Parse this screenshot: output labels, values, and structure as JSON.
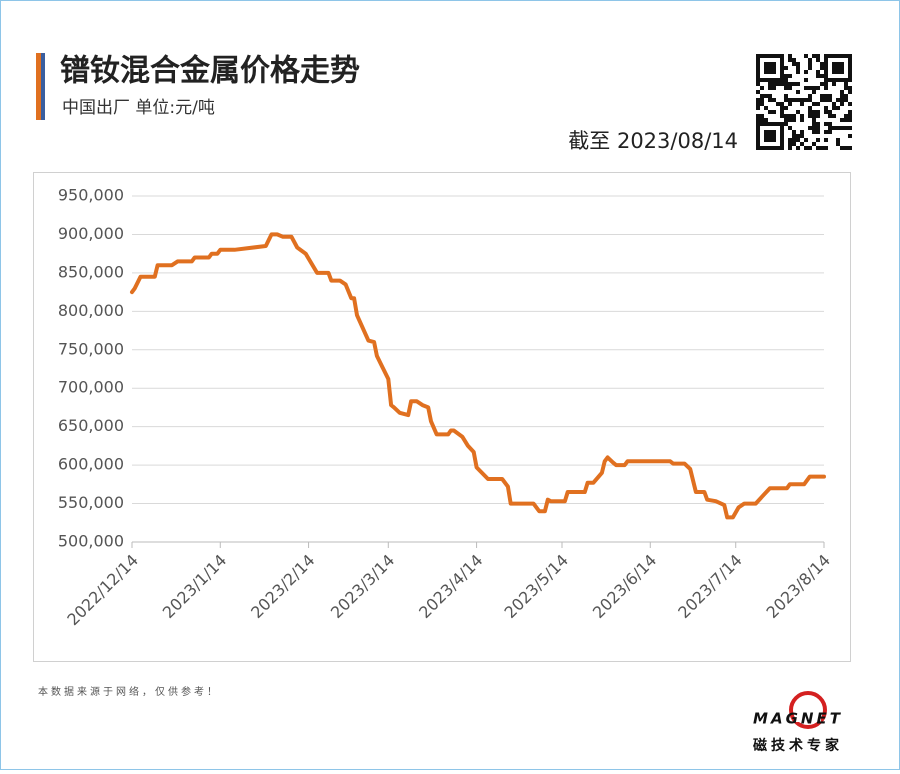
{
  "chart_data": {
    "type": "line",
    "title": "镨钕混合金属价格走势",
    "subtitle": "中国出厂 单位:元/吨",
    "date_note": "截至 2023/08/14",
    "footnote": "本数据来源于网络，仅供参考！",
    "brand": "MAGNET",
    "brand_tagline": "磁技术专家",
    "color": "#e07020",
    "grid": true,
    "x": [
      "2022/12/14",
      "2022/12/15",
      "2022/12/17",
      "2022/12/22",
      "2022/12/23",
      "2022/12/28",
      "2022/12/30",
      "2023/1/4",
      "2023/1/5",
      "2023/1/10",
      "2023/1/11",
      "2023/1/13",
      "2023/1/14",
      "2023/1/19",
      "2023/1/30",
      "2023/2/1",
      "2023/2/3",
      "2023/2/5",
      "2023/2/8",
      "2023/2/10",
      "2023/2/13",
      "2023/2/17",
      "2023/2/21",
      "2023/2/22",
      "2023/2/25",
      "2023/2/27",
      "2023/3/1",
      "2023/3/2",
      "2023/3/3",
      "2023/3/7",
      "2023/3/9",
      "2023/3/10",
      "2023/3/12",
      "2023/3/14",
      "2023/3/15",
      "2023/3/16",
      "2023/3/18",
      "2023/3/21",
      "2023/3/22",
      "2023/3/24",
      "2023/3/26",
      "2023/3/28",
      "2023/3/29",
      "2023/3/31",
      "2023/4/4",
      "2023/4/5",
      "2023/4/6",
      "2023/4/9",
      "2023/4/11",
      "2023/4/13",
      "2023/4/14",
      "2023/4/18",
      "2023/4/23",
      "2023/4/25",
      "2023/4/26",
      "2023/5/4",
      "2023/5/6",
      "2023/5/8",
      "2023/5/9",
      "2023/5/10",
      "2023/5/15",
      "2023/5/16",
      "2023/5/22",
      "2023/5/23",
      "2023/5/25",
      "2023/5/28",
      "2023/5/29",
      "2023/5/30",
      "2023/6/1",
      "2023/6/2",
      "2023/6/5",
      "2023/6/6",
      "2023/6/21",
      "2023/6/22",
      "2023/6/26",
      "2023/6/28",
      "2023/6/30",
      "2023/7/3",
      "2023/7/4",
      "2023/7/7",
      "2023/7/10",
      "2023/7/11",
      "2023/7/13",
      "2023/7/15",
      "2023/7/17",
      "2023/7/21",
      "2023/7/24",
      "2023/7/26",
      "2023/8/1",
      "2023/8/2",
      "2023/8/7",
      "2023/8/9",
      "2023/8/14"
    ],
    "values": [
      825000,
      830000,
      845000,
      845000,
      860000,
      860000,
      865000,
      865000,
      870000,
      870000,
      875000,
      875000,
      880000,
      880000,
      885000,
      900000,
      900000,
      897000,
      897000,
      883000,
      875000,
      850000,
      850000,
      840000,
      840000,
      835000,
      817000,
      817000,
      795000,
      762000,
      760000,
      742000,
      727000,
      712000,
      678000,
      675000,
      668000,
      665000,
      683000,
      683000,
      678000,
      675000,
      657000,
      640000,
      640000,
      645000,
      645000,
      637000,
      625000,
      617000,
      597000,
      582000,
      582000,
      572000,
      550000,
      550000,
      540000,
      540000,
      555000,
      553000,
      553000,
      565000,
      565000,
      577000,
      577000,
      590000,
      605000,
      610000,
      603000,
      600000,
      600000,
      605000,
      605000,
      602000,
      602000,
      595000,
      565000,
      565000,
      555000,
      553000,
      548000,
      532000,
      532000,
      545000,
      550000,
      550000,
      562000,
      570000,
      570000,
      575000,
      575000,
      585000,
      585000
    ],
    "xlim": [
      "2022/12/14",
      "2023/8/14"
    ],
    "xticks": [
      "2022/12/14",
      "2023/1/14",
      "2023/2/14",
      "2023/3/14",
      "2023/4/14",
      "2023/5/14",
      "2023/6/14",
      "2023/7/14",
      "2023/8/14"
    ],
    "ylim": [
      500000,
      950000
    ],
    "yticks": [
      {
        "value": 500000,
        "label": "500,000"
      },
      {
        "value": 550000,
        "label": "550,000"
      },
      {
        "value": 600000,
        "label": "600,000"
      },
      {
        "value": 650000,
        "label": "650,000"
      },
      {
        "value": 700000,
        "label": "700,000"
      },
      {
        "value": 750000,
        "label": "750,000"
      },
      {
        "value": 800000,
        "label": "800,000"
      },
      {
        "value": 850000,
        "label": "850,000"
      },
      {
        "value": 900000,
        "label": "900,000"
      },
      {
        "value": 950000,
        "label": "950,000"
      }
    ]
  }
}
